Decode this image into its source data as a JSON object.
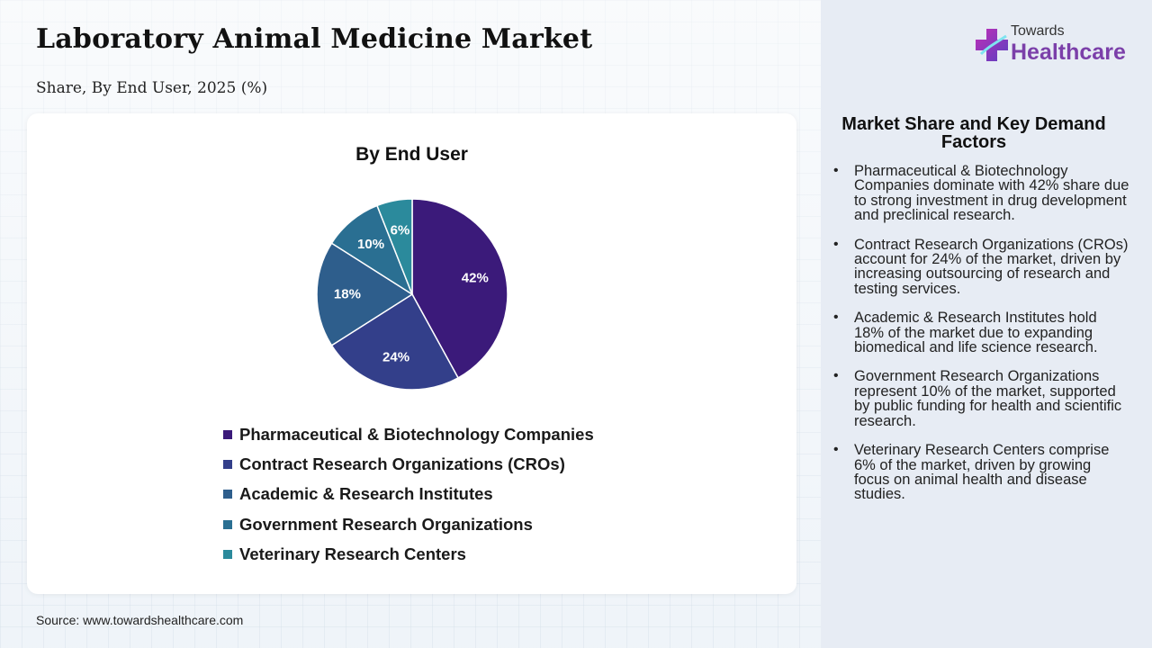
{
  "page": {
    "title": "Laboratory Animal Medicine Market",
    "subtitle": "Share, By End User, 2025 (%)",
    "source": "Source: www.towardshealthcare.com"
  },
  "logo": {
    "small": "Towards",
    "big": "Healthcare"
  },
  "chart_data": {
    "type": "pie",
    "title": "By End User",
    "categories": [
      "Pharmaceutical & Biotechnology Companies",
      "Contract Research Organizations (CROs)",
      "Academic & Research Institutes",
      "Government Research Organizations",
      "Veterinary Research Centers"
    ],
    "values": [
      42,
      24,
      18,
      10,
      6
    ],
    "labels": [
      "42%",
      "24%",
      "18%",
      "10%",
      "6%"
    ],
    "colors": [
      "#3b1a7a",
      "#333f8a",
      "#2e5e8c",
      "#2a6f92",
      "#2b8a9c"
    ],
    "legend_position": "bottom"
  },
  "panel": {
    "title": "Market Share and Key Demand Factors",
    "items": [
      "Pharmaceutical & Biotechnology Companies dominate with 42% share due to strong investment in drug development and preclinical research.",
      "Contract Research Organizations (CROs) account for 24% of the market, driven by increasing outsourcing of research and testing services.",
      "Academic & Research Institutes hold 18% of the market due to expanding biomedical and life science research.",
      "Government Research Organizations represent 10% of the market, supported by public funding for health and scientific research.",
      "Veterinary Research Centers comprise 6% of the market, driven by growing focus on animal health and disease studies."
    ]
  }
}
